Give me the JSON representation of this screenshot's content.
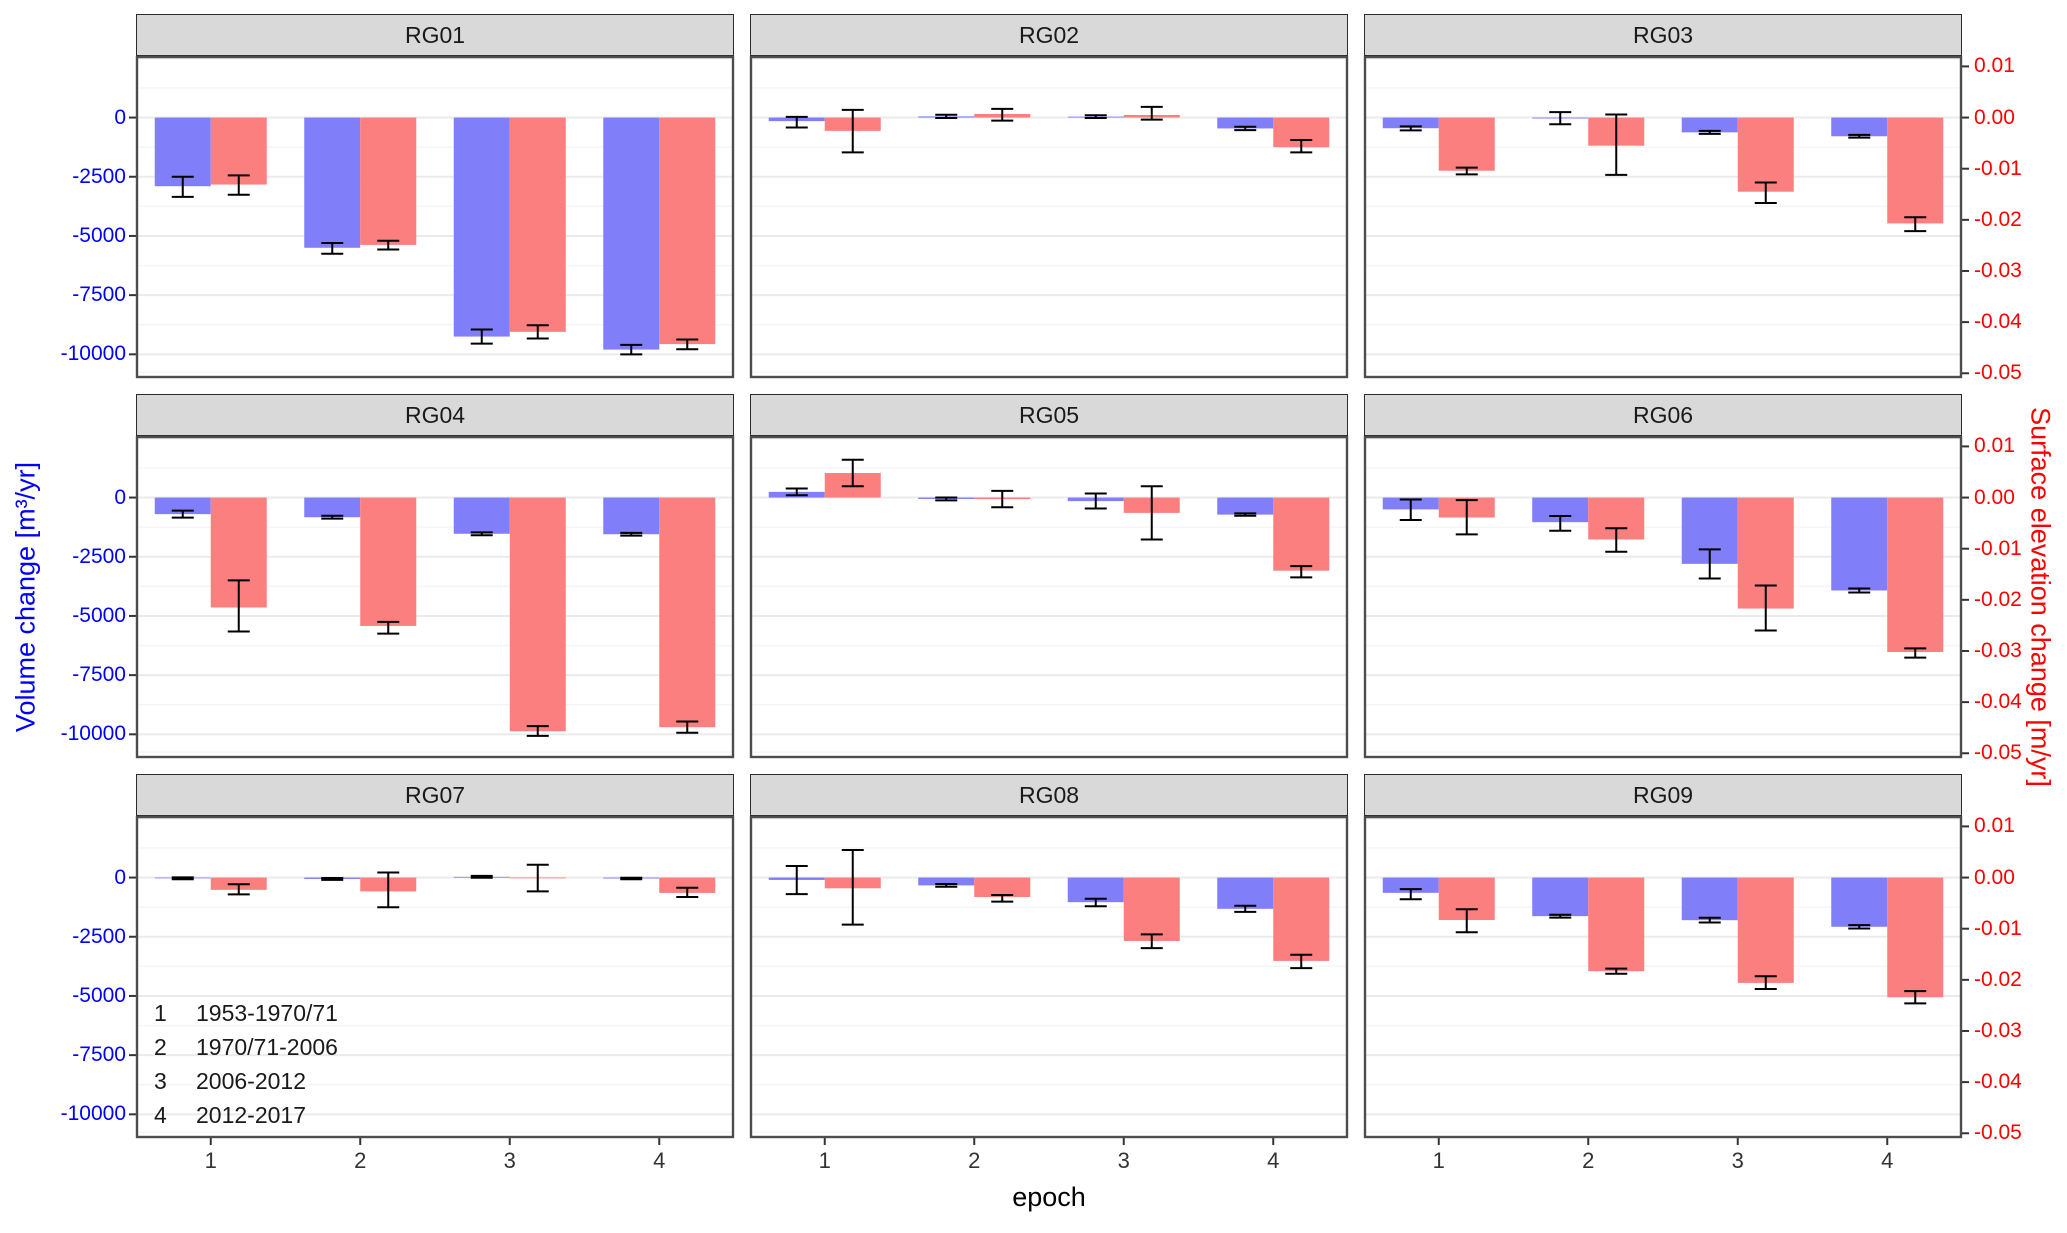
{
  "chart_data": {
    "type": "bar",
    "description": "Faceted grouped bar chart with error bars; blue bars = volume change (left axis), red bars = surface elevation change (right axis), per epoch 1-4 for rock glaciers RG01-RG09",
    "x_axis": {
      "title": "epoch",
      "ticks": [
        "1",
        "2",
        "3",
        "4"
      ]
    },
    "left_axis": {
      "title": "Volume change [m³/yr]",
      "color": "#0000FF",
      "range": [
        2600,
        -11000
      ],
      "ticks": [
        {
          "label": "0",
          "value": 0
        },
        {
          "label": "-2500",
          "value": -2500
        },
        {
          "label": "-5000",
          "value": -5000
        },
        {
          "label": "-7500",
          "value": -7500
        },
        {
          "label": "-10000",
          "value": -10000
        }
      ],
      "grid_major": [
        2500,
        0,
        -2500,
        -5000,
        -7500,
        -10000
      ],
      "grid_minor": [
        1250,
        -1250,
        -3750,
        -6250,
        -8750,
        -10750
      ]
    },
    "right_axis": {
      "title": "Surface elevation change [m/yr]",
      "color": "#FF0000",
      "range": [
        0.012037,
        -0.050926
      ],
      "ticks": [
        {
          "label": "0.01",
          "value": 0.01
        },
        {
          "label": "0.00",
          "value": 0.0
        },
        {
          "label": "-0.01",
          "value": -0.01
        },
        {
          "label": "-0.02",
          "value": -0.02
        },
        {
          "label": "-0.03",
          "value": -0.03
        },
        {
          "label": "-0.04",
          "value": -0.04
        },
        {
          "label": "-0.05",
          "value": -0.05
        }
      ]
    },
    "series": [
      {
        "name": "Volume change",
        "axis": "left",
        "color": "#807FF9"
      },
      {
        "name": "Surface elevation change",
        "axis": "right",
        "color": "#FB7F7F"
      }
    ],
    "colors": {
      "strip_bg": "#D9D9D9",
      "panel_border": "#4D4D4D",
      "grid_major": "#EBEBEB",
      "grid_minor": "#F5F5F5",
      "error_bar": "#000000"
    },
    "legend": {
      "items": [
        {
          "key": "1",
          "label": "1953-1970/71"
        },
        {
          "key": "2",
          "label": "1970/71-2006"
        },
        {
          "key": "3",
          "label": "2006-2012"
        },
        {
          "key": "4",
          "label": "2012-2017"
        }
      ]
    },
    "facets": [
      {
        "label": "RG01",
        "epochs": [
          {
            "volume": {
              "value": -2900,
              "err": [
                -3350,
                -2500
              ]
            },
            "elevation": {
              "value": -0.0131,
              "err": [
                -0.0151,
                -0.0113
              ]
            }
          },
          {
            "volume": {
              "value": -5500,
              "err": [
                -5750,
                -5300
              ]
            },
            "elevation": {
              "value": -0.0249,
              "err": [
                -0.0258,
                -0.0241
              ]
            }
          },
          {
            "volume": {
              "value": -9250,
              "err": [
                -9550,
                -8950
              ]
            },
            "elevation": {
              "value": -0.0419,
              "err": [
                -0.0432,
                -0.0406
              ]
            }
          },
          {
            "volume": {
              "value": -9800,
              "err": [
                -10000,
                -9600
              ]
            },
            "elevation": {
              "value": -0.0443,
              "err": [
                -0.0453,
                -0.0434
              ]
            }
          }
        ]
      },
      {
        "label": "RG02",
        "epochs": [
          {
            "volume": {
              "value": -150,
              "err": [
                -420,
                30
              ]
            },
            "elevation": {
              "value": -0.0026,
              "err": [
                -0.0068,
                0.0015
              ]
            }
          },
          {
            "volume": {
              "value": 50,
              "err": [
                -20,
                120
              ]
            },
            "elevation": {
              "value": 0.0007,
              "err": [
                -0.0006,
                0.0017
              ]
            }
          },
          {
            "volume": {
              "value": 40,
              "err": [
                -20,
                100
              ]
            },
            "elevation": {
              "value": 0.0005,
              "err": [
                -0.0004,
                0.0021
              ]
            }
          },
          {
            "volume": {
              "value": -460,
              "err": [
                -530,
                -390
              ]
            },
            "elevation": {
              "value": -0.0058,
              "err": [
                -0.0068,
                -0.0044
              ]
            }
          }
        ]
      },
      {
        "label": "RG03",
        "epochs": [
          {
            "volume": {
              "value": -450,
              "err": [
                -540,
                -370
              ]
            },
            "elevation": {
              "value": -0.0104,
              "err": [
                -0.0111,
                -0.0098
              ]
            }
          },
          {
            "volume": {
              "value": -40,
              "err": [
                -280,
                230
              ]
            },
            "elevation": {
              "value": -0.0055,
              "err": [
                -0.0112,
                0.0006
              ]
            }
          },
          {
            "volume": {
              "value": -625,
              "err": [
                -690,
                -560
              ]
            },
            "elevation": {
              "value": -0.0145,
              "err": [
                -0.0167,
                -0.0127
              ]
            }
          },
          {
            "volume": {
              "value": -790,
              "err": [
                -850,
                -730
              ]
            },
            "elevation": {
              "value": -0.0207,
              "err": [
                -0.0222,
                -0.0195
              ]
            }
          }
        ]
      },
      {
        "label": "RG04",
        "epochs": [
          {
            "volume": {
              "value": -700,
              "err": [
                -850,
                -550
              ]
            },
            "elevation": {
              "value": -0.0215,
              "err": [
                -0.0262,
                -0.0162
              ]
            }
          },
          {
            "volume": {
              "value": -830,
              "err": [
                -890,
                -770
              ]
            },
            "elevation": {
              "value": -0.0251,
              "err": [
                -0.0266,
                -0.0243
              ]
            }
          },
          {
            "volume": {
              "value": -1530,
              "err": [
                -1590,
                -1470
              ]
            },
            "elevation": {
              "value": -0.0457,
              "err": [
                -0.0466,
                -0.0447
              ]
            }
          },
          {
            "volume": {
              "value": -1550,
              "err": [
                -1610,
                -1490
              ]
            },
            "elevation": {
              "value": -0.0449,
              "err": [
                -0.046,
                -0.0438
              ]
            }
          }
        ]
      },
      {
        "label": "RG05",
        "epochs": [
          {
            "volume": {
              "value": 240,
              "err": [
                100,
                380
              ]
            },
            "elevation": {
              "value": 0.0048,
              "err": [
                0.0022,
                0.0074
              ]
            }
          },
          {
            "volume": {
              "value": -60,
              "err": [
                -120,
                0
              ]
            },
            "elevation": {
              "value": -0.0003,
              "err": [
                -0.0019,
                0.0013
              ]
            }
          },
          {
            "volume": {
              "value": -150,
              "err": [
                -460,
                170
              ]
            },
            "elevation": {
              "value": -0.003,
              "err": [
                -0.0082,
                0.0022
              ]
            }
          },
          {
            "volume": {
              "value": -720,
              "err": [
                -770,
                -670
              ]
            },
            "elevation": {
              "value": -0.0143,
              "err": [
                -0.0156,
                -0.0134
              ]
            }
          }
        ]
      },
      {
        "label": "RG06",
        "epochs": [
          {
            "volume": {
              "value": -500,
              "err": [
                -950,
                -80
              ]
            },
            "elevation": {
              "value": -0.0039,
              "err": [
                -0.0072,
                -0.0005
              ]
            }
          },
          {
            "volume": {
              "value": -1040,
              "err": [
                -1400,
                -780
              ]
            },
            "elevation": {
              "value": -0.0082,
              "err": [
                -0.0106,
                -0.006
              ]
            }
          },
          {
            "volume": {
              "value": -2800,
              "err": [
                -3420,
                -2190
              ]
            },
            "elevation": {
              "value": -0.0217,
              "err": [
                -0.026,
                -0.0172
              ]
            }
          },
          {
            "volume": {
              "value": -3925,
              "err": [
                -4010,
                -3840
              ]
            },
            "elevation": {
              "value": -0.0302,
              "err": [
                -0.0313,
                -0.0295
              ]
            }
          }
        ]
      },
      {
        "label": "RG07",
        "epochs": [
          {
            "volume": {
              "value": -30,
              "err": [
                -70,
                10
              ]
            },
            "elevation": {
              "value": -0.0024,
              "err": [
                -0.0033,
                -0.0013
              ]
            }
          },
          {
            "volume": {
              "value": -60,
              "err": [
                -100,
                -20
              ]
            },
            "elevation": {
              "value": -0.0027,
              "err": [
                -0.0058,
                0.001
              ]
            }
          },
          {
            "volume": {
              "value": 30,
              "err": [
                -10,
                70
              ]
            },
            "elevation": {
              "value": -0.0001,
              "err": [
                -0.0027,
                0.0025
              ]
            }
          },
          {
            "volume": {
              "value": -40,
              "err": [
                -70,
                -10
              ]
            },
            "elevation": {
              "value": -0.003,
              "err": [
                -0.0038,
                -0.002
              ]
            }
          }
        ]
      },
      {
        "label": "RG08",
        "epochs": [
          {
            "volume": {
              "value": -100,
              "err": [
                -700,
                490
              ]
            },
            "elevation": {
              "value": -0.0021,
              "err": [
                -0.0092,
                0.0054
              ]
            }
          },
          {
            "volume": {
              "value": -330,
              "err": [
                -390,
                -270
              ]
            },
            "elevation": {
              "value": -0.0038,
              "err": [
                -0.0047,
                -0.0034
              ]
            }
          },
          {
            "volume": {
              "value": -1040,
              "err": [
                -1210,
                -895
              ]
            },
            "elevation": {
              "value": -0.0124,
              "err": [
                -0.0138,
                -0.0111
              ]
            }
          },
          {
            "volume": {
              "value": -1320,
              "err": [
                -1450,
                -1190
              ]
            },
            "elevation": {
              "value": -0.0163,
              "err": [
                -0.0177,
                -0.0151
              ]
            }
          }
        ]
      },
      {
        "label": "RG09",
        "epochs": [
          {
            "volume": {
              "value": -645,
              "err": [
                -915,
                -490
              ]
            },
            "elevation": {
              "value": -0.0083,
              "err": [
                -0.0107,
                -0.0062
              ]
            }
          },
          {
            "volume": {
              "value": -1630,
              "err": [
                -1690,
                -1570
              ]
            },
            "elevation": {
              "value": -0.0183,
              "err": [
                -0.0188,
                -0.0178
              ]
            }
          },
          {
            "volume": {
              "value": -1800,
              "err": [
                -1900,
                -1700
              ]
            },
            "elevation": {
              "value": -0.0206,
              "err": [
                -0.0218,
                -0.0193
              ]
            }
          },
          {
            "volume": {
              "value": -2080,
              "err": [
                -2150,
                -2010
              ]
            },
            "elevation": {
              "value": -0.0234,
              "err": [
                -0.0246,
                -0.0222
              ]
            }
          }
        ]
      }
    ]
  }
}
